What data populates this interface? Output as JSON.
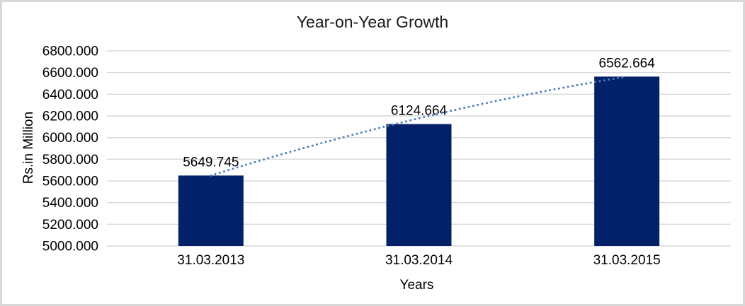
{
  "window": {
    "background": "#ffffff",
    "border_color": "#d8d8d8"
  },
  "chart_data": {
    "type": "bar",
    "title": "Year-on-Year Growth",
    "xlabel": "Years",
    "ylabel": "Rs.in Million",
    "categories": [
      "31.03.2013",
      "31.03.2014",
      "31.03.2015"
    ],
    "values": [
      5649.745,
      6124.664,
      6562.664
    ],
    "data_labels": [
      "5649.745",
      "6124.664",
      "6562.664"
    ],
    "ylim": [
      5000,
      6800
    ],
    "ytick_step": 200,
    "ytick_labels": [
      "6800.000",
      "6600.000",
      "6400.000",
      "6200.000",
      "6000.000",
      "5800.000",
      "5600.000",
      "5400.000",
      "5200.000",
      "5000.000"
    ],
    "grid": true,
    "legend": "none",
    "trendline": {
      "style": "dotted",
      "shape": "curved",
      "from_category": "31.03.2013",
      "to_category": "31.03.2015"
    },
    "colors": {
      "bar": "#032169",
      "gridline": "#d9d9d9",
      "trendline": "#4a7ebf",
      "text": "#000000"
    }
  }
}
